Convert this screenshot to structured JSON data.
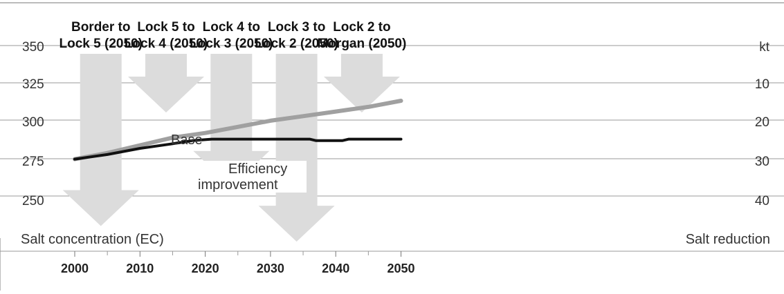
{
  "chart_data": {
    "type": "line",
    "title": "",
    "left_axis": {
      "label": "Salt concentration (EC)",
      "ticks": [
        250,
        275,
        300,
        325,
        350
      ],
      "range": [
        225,
        362
      ]
    },
    "right_axis": {
      "label": "Salt reduction",
      "unit": "kt",
      "ticks": [
        10,
        20,
        30,
        40
      ],
      "range": [
        0,
        50
      ]
    },
    "x_axis": {
      "ticks": [
        2000,
        2010,
        2020,
        2030,
        2040,
        2050
      ],
      "range": [
        1995,
        2055
      ]
    },
    "series": [
      {
        "name": "Base",
        "color": "#a0a0a0",
        "x": [
          2000,
          2005,
          2010,
          2015,
          2020,
          2025,
          2030,
          2035,
          2040,
          2045,
          2050
        ],
        "y": [
          277,
          281,
          286,
          291,
          294,
          298,
          302,
          305,
          308,
          311,
          315
        ]
      },
      {
        "name": "Efficiency improvement",
        "color": "#111111",
        "x": [
          2000,
          2005,
          2010,
          2015,
          2018,
          2021,
          2025,
          2030,
          2036,
          2037,
          2041,
          2042,
          2045,
          2050
        ],
        "y": [
          277,
          280,
          284,
          287,
          289,
          290,
          290,
          290,
          290,
          289,
          289,
          290,
          290,
          290
        ]
      }
    ],
    "reductions": [
      {
        "label_line1": "Border to",
        "label_line2": "Lock 5 (2050)",
        "x": 2004,
        "value": 44
      },
      {
        "label_line1": "Lock 5 to",
        "label_line2": "Lock 4 (2050)",
        "x": 2014,
        "value": 15
      },
      {
        "label_line1": "Lock 4 to",
        "label_line2": "Lock 3 (2050)",
        "x": 2024,
        "value": 34
      },
      {
        "label_line1": "Lock 3 to",
        "label_line2": "Lock 2 (2050)",
        "x": 2034,
        "value": 48
      },
      {
        "label_line1": "Lock 2 to",
        "label_line2": "Morgan (2050)",
        "x": 2044,
        "value": 15
      }
    ],
    "arrow_color": "#dcdcdc",
    "grid": true
  }
}
